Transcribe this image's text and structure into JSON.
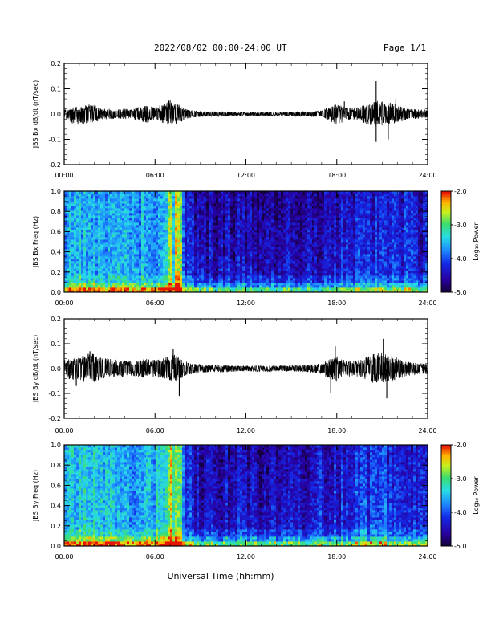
{
  "header": {
    "title": "2022/08/02  00:00-24:00 UT",
    "page": "Page 1/1"
  },
  "chart_data": [
    {
      "type": "line",
      "ylabel": "JBS Bx dB/dt (nT/sec)",
      "xlim": [
        0,
        24
      ],
      "ylim": [
        -0.2,
        0.2
      ],
      "xticks": [
        "00:00",
        "06:00",
        "12:00",
        "18:00",
        "24:00"
      ],
      "yticks": [
        "-0.2",
        "-0.1",
        "0.0",
        "0.1",
        "0.2"
      ],
      "envelope": {
        "hours": [
          0,
          0.5,
          1,
          1.5,
          2,
          2.5,
          3,
          3.5,
          4,
          4.5,
          5,
          5.5,
          6,
          6.5,
          7,
          7.5,
          8,
          8.5,
          9,
          9.5,
          10,
          10.5,
          11,
          11.5,
          12,
          12.5,
          13,
          13.5,
          14,
          14.5,
          15,
          15.5,
          16,
          16.5,
          17,
          17.5,
          18,
          18.5,
          19,
          19.5,
          20,
          20.5,
          21,
          21.5,
          22,
          22.5,
          23,
          23.5,
          24
        ],
        "upper": [
          0.018,
          0.025,
          0.032,
          0.04,
          0.035,
          0.022,
          0.02,
          0.018,
          0.022,
          0.02,
          0.03,
          0.035,
          0.025,
          0.035,
          0.058,
          0.04,
          0.02,
          0.014,
          0.012,
          0.01,
          0.01,
          0.01,
          0.009,
          0.008,
          0.008,
          0.008,
          0.008,
          0.009,
          0.008,
          0.008,
          0.009,
          0.01,
          0.01,
          0.012,
          0.015,
          0.03,
          0.045,
          0.028,
          0.022,
          0.028,
          0.04,
          0.05,
          0.055,
          0.048,
          0.035,
          0.025,
          0.02,
          0.018,
          0.015
        ],
        "lower": [
          -0.02,
          -0.04,
          -0.045,
          -0.04,
          -0.035,
          -0.022,
          -0.02,
          -0.018,
          -0.02,
          -0.02,
          -0.03,
          -0.035,
          -0.025,
          -0.035,
          -0.05,
          -0.04,
          -0.02,
          -0.014,
          -0.012,
          -0.01,
          -0.01,
          -0.01,
          -0.009,
          -0.008,
          -0.008,
          -0.008,
          -0.008,
          -0.009,
          -0.008,
          -0.008,
          -0.009,
          -0.01,
          -0.01,
          -0.012,
          -0.015,
          -0.03,
          -0.045,
          -0.028,
          -0.022,
          -0.028,
          -0.04,
          -0.05,
          -0.045,
          -0.04,
          -0.035,
          -0.025,
          -0.02,
          -0.018,
          -0.015
        ]
      },
      "spikes": [
        [
          18.5,
          0.05
        ],
        [
          20.6,
          0.13
        ],
        [
          20.6,
          -0.11
        ],
        [
          21.4,
          -0.1
        ],
        [
          21.9,
          0.06
        ]
      ]
    },
    {
      "type": "heatmap",
      "ylabel": "JBS Bx Freq (Hz)",
      "xlim": [
        0,
        24
      ],
      "ylim": [
        0,
        1.0
      ],
      "xticks": [
        "00:00",
        "06:00",
        "12:00",
        "18:00",
        "24:00"
      ],
      "yticks": [
        "0.0",
        "0.2",
        "0.4",
        "0.6",
        "0.8",
        "1.0"
      ],
      "colorbar": {
        "label": "Log₁₀ Power",
        "range": [
          -5.0,
          -2.0
        ],
        "ticks": [
          "-2.0",
          "-3.0",
          "-4.0",
          "-5.0"
        ]
      },
      "activity_hours": [
        0,
        1,
        2,
        3,
        4,
        5,
        6,
        6.5,
        7,
        7.5,
        8,
        9,
        10,
        12,
        14,
        16,
        18,
        19,
        20,
        21,
        22,
        23,
        24
      ],
      "activity_level": [
        0.7,
        0.85,
        0.8,
        0.75,
        0.7,
        0.72,
        0.75,
        0.8,
        0.95,
        0.85,
        0.3,
        0.15,
        0.1,
        0.1,
        0.1,
        0.12,
        0.2,
        0.25,
        0.3,
        0.35,
        0.3,
        0.25,
        0.25
      ],
      "bright_columns_hours": [
        7.0,
        7.4,
        7.6
      ],
      "seed": 11
    },
    {
      "type": "line",
      "ylabel": "JBS By dB/dt (nT/sec)",
      "xlim": [
        0,
        24
      ],
      "ylim": [
        -0.2,
        0.2
      ],
      "xticks": [
        "00:00",
        "06:00",
        "12:00",
        "18:00",
        "24:00"
      ],
      "yticks": [
        "-0.2",
        "-0.1",
        "0.0",
        "0.1",
        "0.2"
      ],
      "envelope": {
        "hours": [
          0,
          0.5,
          1,
          1.5,
          2,
          2.5,
          3,
          3.5,
          4,
          4.5,
          5,
          5.5,
          6,
          6.5,
          7,
          7.5,
          8,
          8.5,
          9,
          9.5,
          10,
          10.5,
          11,
          11.5,
          12,
          12.5,
          13,
          13.5,
          14,
          14.5,
          15,
          15.5,
          16,
          16.5,
          17,
          17.5,
          18,
          18.5,
          19,
          19.5,
          20,
          20.5,
          21,
          21.5,
          22,
          22.5,
          23,
          23.5,
          24
        ],
        "upper": [
          0.035,
          0.04,
          0.05,
          0.06,
          0.065,
          0.045,
          0.04,
          0.035,
          0.035,
          0.03,
          0.035,
          0.04,
          0.035,
          0.04,
          0.065,
          0.05,
          0.03,
          0.02,
          0.018,
          0.016,
          0.015,
          0.015,
          0.012,
          0.012,
          0.012,
          0.012,
          0.012,
          0.013,
          0.012,
          0.012,
          0.013,
          0.015,
          0.015,
          0.018,
          0.022,
          0.04,
          0.055,
          0.035,
          0.03,
          0.035,
          0.05,
          0.06,
          0.065,
          0.055,
          0.045,
          0.035,
          0.025,
          0.022,
          0.02
        ],
        "lower": [
          -0.035,
          -0.045,
          -0.05,
          -0.06,
          -0.055,
          -0.04,
          -0.04,
          -0.035,
          -0.035,
          -0.03,
          -0.035,
          -0.04,
          -0.035,
          -0.04,
          -0.055,
          -0.05,
          -0.03,
          -0.02,
          -0.018,
          -0.016,
          -0.015,
          -0.015,
          -0.012,
          -0.012,
          -0.012,
          -0.012,
          -0.012,
          -0.013,
          -0.012,
          -0.012,
          -0.013,
          -0.015,
          -0.015,
          -0.018,
          -0.022,
          -0.04,
          -0.055,
          -0.035,
          -0.03,
          -0.035,
          -0.05,
          -0.06,
          -0.06,
          -0.055,
          -0.045,
          -0.035,
          -0.025,
          -0.022,
          -0.02
        ]
      },
      "spikes": [
        [
          0.8,
          -0.07
        ],
        [
          1.7,
          0.07
        ],
        [
          7.2,
          0.08
        ],
        [
          7.6,
          -0.11
        ],
        [
          17.6,
          -0.1
        ],
        [
          17.9,
          0.09
        ],
        [
          21.1,
          0.12
        ],
        [
          21.3,
          -0.12
        ]
      ]
    },
    {
      "type": "heatmap",
      "ylabel": "JBS By Freq (Hz)",
      "xlim": [
        0,
        24
      ],
      "ylim": [
        0,
        1.0
      ],
      "xticks": [
        "00:00",
        "06:00",
        "12:00",
        "18:00",
        "24:00"
      ],
      "yticks": [
        "0.0",
        "0.2",
        "0.4",
        "0.6",
        "0.8",
        "1.0"
      ],
      "colorbar": {
        "label": "Log₁₀ Power",
        "range": [
          -5.0,
          -2.0
        ],
        "ticks": [
          "-2.0",
          "-3.0",
          "-4.0",
          "-5.0"
        ]
      },
      "activity_hours": [
        0,
        1,
        2,
        3,
        4,
        5,
        6,
        6.5,
        7,
        7.5,
        8,
        9,
        10,
        12,
        14,
        16,
        18,
        19,
        20,
        21,
        22,
        23,
        24
      ],
      "activity_level": [
        0.85,
        0.95,
        0.9,
        0.85,
        0.8,
        0.8,
        0.82,
        0.85,
        1.0,
        0.9,
        0.35,
        0.2,
        0.15,
        0.15,
        0.15,
        0.18,
        0.28,
        0.32,
        0.38,
        0.42,
        0.36,
        0.3,
        0.3
      ],
      "bright_columns_hours": [
        7.0,
        7.4,
        7.6
      ],
      "seed": 23
    }
  ],
  "xaxis_label": "Universal Time (hh:mm)"
}
